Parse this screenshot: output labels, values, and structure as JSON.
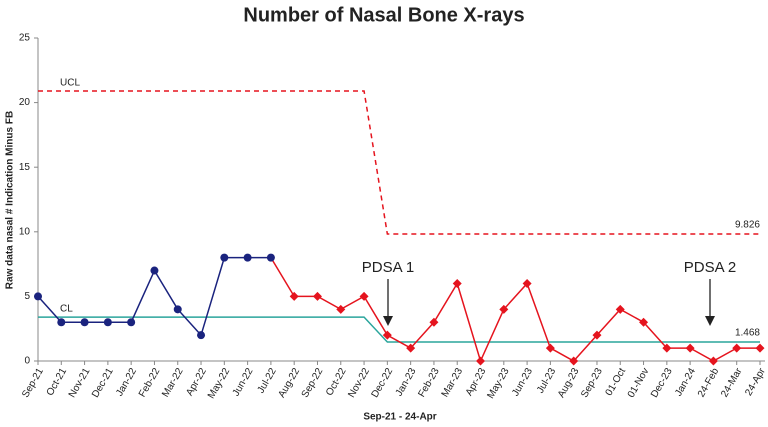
{
  "chart_data": {
    "type": "line",
    "title": "Number of Nasal Bone X-rays",
    "xlabel": "Sep-21 - 24-Apr",
    "ylabel": "Raw data nasal # Indication Minus FB",
    "categories": [
      "Sep-21",
      "Oct-21",
      "Nov-21",
      "Dec-21",
      "Jan-22",
      "Feb-22",
      "Mar-22",
      "Apr-22",
      "May-22",
      "Jun-22",
      "Jul-22",
      "Aug-22",
      "Sep-22",
      "Oct-22",
      "Nov-22",
      "Dec-22",
      "Jan-23",
      "Feb-23",
      "Mar-23",
      "Apr-23",
      "May-23",
      "Jun-23",
      "Jul-23",
      "Aug-23",
      "Sep-23",
      "01-Oct",
      "01-Nov",
      "Dec-23",
      "Jan-24",
      "24-Feb",
      "24-Mar",
      "24-Apr"
    ],
    "series": [
      {
        "color": "#1a237e",
        "marker": "circle",
        "values": [
          5,
          3,
          3,
          3,
          3,
          7,
          4,
          2,
          8,
          8,
          8,
          null,
          null,
          null,
          null,
          null,
          null,
          null,
          null,
          null,
          null,
          null,
          null,
          null,
          null,
          null,
          null,
          null,
          null,
          null,
          null,
          null
        ]
      },
      {
        "color": "#e5141e",
        "marker": "diamond",
        "values": [
          null,
          null,
          null,
          null,
          null,
          null,
          null,
          null,
          null,
          null,
          null,
          5,
          5,
          4,
          5,
          2,
          1,
          3,
          6,
          0,
          4,
          6,
          1,
          0,
          2,
          4,
          3,
          1,
          1,
          0,
          1,
          1
        ]
      },
      {
        "name": "UCL",
        "color": "#e5141e",
        "dashed": true,
        "values": [
          20.9,
          20.9,
          20.9,
          20.9,
          20.9,
          20.9,
          20.9,
          20.9,
          20.9,
          20.9,
          20.9,
          20.9,
          20.9,
          20.9,
          20.9,
          9.826,
          9.826,
          9.826,
          9.826,
          9.826,
          9.826,
          9.826,
          9.826,
          9.826,
          9.826,
          9.826,
          9.826,
          9.826,
          9.826,
          9.826,
          9.826,
          9.826
        ]
      },
      {
        "name": "CL",
        "color": "#2aa59c",
        "values": [
          3.4,
          3.4,
          3.4,
          3.4,
          3.4,
          3.4,
          3.4,
          3.4,
          3.4,
          3.4,
          3.4,
          3.4,
          3.4,
          3.4,
          3.4,
          1.468,
          1.468,
          1.468,
          1.468,
          1.468,
          1.468,
          1.468,
          1.468,
          1.468,
          1.468,
          1.468,
          1.468,
          1.468,
          1.468,
          1.468,
          1.468,
          1.468
        ]
      }
    ],
    "annotations": [
      "PDSA 1",
      "PDSA 2"
    ],
    "ylim": [
      0,
      25
    ],
    "yticks": [
      0,
      5,
      10,
      15,
      20,
      25
    ]
  }
}
